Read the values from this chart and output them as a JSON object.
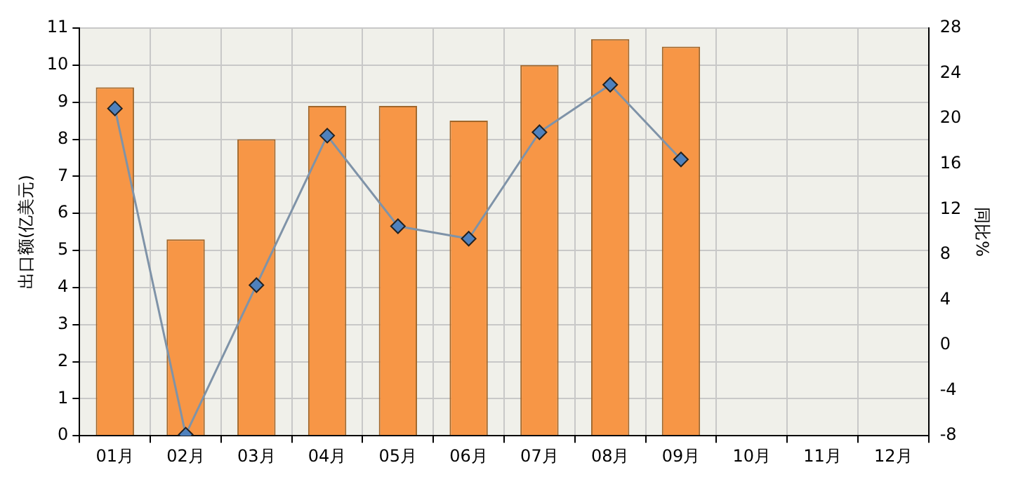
{
  "chart_data": {
    "type": "bar",
    "categories": [
      "01月",
      "02月",
      "03月",
      "04月",
      "05月",
      "06月",
      "07月",
      "08月",
      "09月",
      "10月",
      "11月",
      "12月"
    ],
    "series": [
      {
        "color": "#f79646",
        "values": [
          9.4,
          5.3,
          8.0,
          8.9,
          8.9,
          8.5,
          10.0,
          10.7,
          10.5,
          null,
          null,
          null
        ]
      },
      {
        "type": "line",
        "axis": "y2",
        "color": "#4f81bd",
        "marker": "diamond",
        "line_style": "solid",
        "values": [
          20.9,
          -7.9,
          5.3,
          18.5,
          10.5,
          9.4,
          18.8,
          23.0,
          16.4,
          null,
          null,
          null
        ]
      }
    ],
    "ylabel": "出口额(亿美元)",
    "y2label": "同比%",
    "ylim": [
      0,
      11
    ],
    "yticks": [
      0,
      1,
      2,
      3,
      4,
      5,
      6,
      7,
      8,
      9,
      10,
      11
    ],
    "y2lim": [
      -8,
      28
    ],
    "y2ticks": [
      -8,
      -4,
      0,
      4,
      8,
      12,
      16,
      20,
      24,
      28
    ],
    "grid": true,
    "legend": false
  }
}
